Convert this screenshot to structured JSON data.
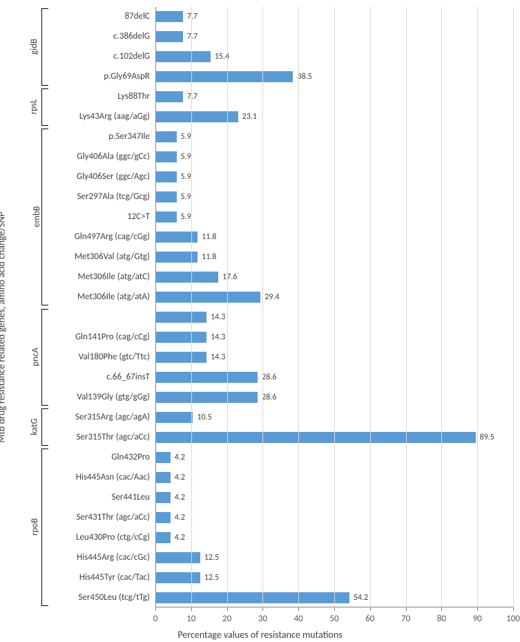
{
  "chart": {
    "type": "bar-horizontal",
    "x_axis_title": "Percentage values of resistance mutations",
    "y_axis_title": "Mtb drug resistance related genes, amino acid change/SNP",
    "xlim_min": 0,
    "xlim_max": 100,
    "xtick_step": 10,
    "xticks": [
      0,
      10,
      20,
      30,
      40,
      50,
      60,
      70,
      80,
      90,
      100
    ],
    "bar_color": "#5b9bd5",
    "grid_color": "#d9d9d9",
    "axis_color": "#808080",
    "background_color": "#ffffff",
    "label_fontsize": 13,
    "value_fontsize": 12,
    "title_fontsize": 14,
    "groups": [
      {
        "name": "gidB",
        "start": 0,
        "end": 3
      },
      {
        "name": "rpsL",
        "start": 4,
        "end": 5
      },
      {
        "name": "embB",
        "start": 6,
        "end": 14
      },
      {
        "name": "pncA",
        "start": 15,
        "end": 19
      },
      {
        "name": "katG",
        "start": 20,
        "end": 21
      },
      {
        "name": "rpoB",
        "start": 22,
        "end": 29
      }
    ],
    "rows": [
      {
        "label": "87delC",
        "value": 7.7
      },
      {
        "label": "c.386delG",
        "value": 7.7
      },
      {
        "label": "c.102delG",
        "value": 15.4
      },
      {
        "label": "p.Gly69AspR",
        "value": 38.5
      },
      {
        "label": "Lys88Thr",
        "value": 7.7
      },
      {
        "label": "Lys43Arg (aag/aGg)",
        "value": 23.1
      },
      {
        "label": "p.Ser347Ile",
        "value": 5.9
      },
      {
        "label": "Gly406Ala (ggc/gCc)",
        "value": 5.9
      },
      {
        "label": "Gly406Ser (ggc/Agc)",
        "value": 5.9
      },
      {
        "label": "Ser297Ala (tcg/Gcg)",
        "value": 5.9
      },
      {
        "label": "12C>T",
        "value": 5.9
      },
      {
        "label": "Gln497Arg (cag/cGg)",
        "value": 11.8
      },
      {
        "label": "Met306Val (atg/Gtg)",
        "value": 11.8
      },
      {
        "label": "Met306Ile (atg/atC)",
        "value": 17.6
      },
      {
        "label": "Met306Ile (atg/atA)",
        "value": 29.4
      },
      {
        "label": "",
        "value": 14.3
      },
      {
        "label": "Gln141Pro (cag/cCg)",
        "value": 14.3
      },
      {
        "label": "Val180Phe (gtc/Ttc)",
        "value": 14.3
      },
      {
        "label": "c.66_67insT",
        "value": 28.6
      },
      {
        "label": "Val139Gly (gtg/gGg)",
        "value": 28.6
      },
      {
        "label": "Ser315Arg (agc/agA)",
        "value": 10.5
      },
      {
        "label": "Ser315Thr (agc/aCc)",
        "value": 89.5
      },
      {
        "label": "Gln432Pro",
        "value": 4.2
      },
      {
        "label": "His445Asn (cac/Aac)",
        "value": 4.2
      },
      {
        "label": "Ser441Leu",
        "value": 4.2
      },
      {
        "label": "Ser431Thr (agc/aCc)",
        "value": 4.2
      },
      {
        "label": "Leu430Pro (ctg/cCg)",
        "value": 4.2
      },
      {
        "label": "His445Arg (cac/cGc)",
        "value": 12.5
      },
      {
        "label": "His445Tyr (cac/Tac)",
        "value": 12.5
      },
      {
        "label": "Ser450Leu (tcg/tTg)",
        "value": 54.2
      }
    ]
  }
}
